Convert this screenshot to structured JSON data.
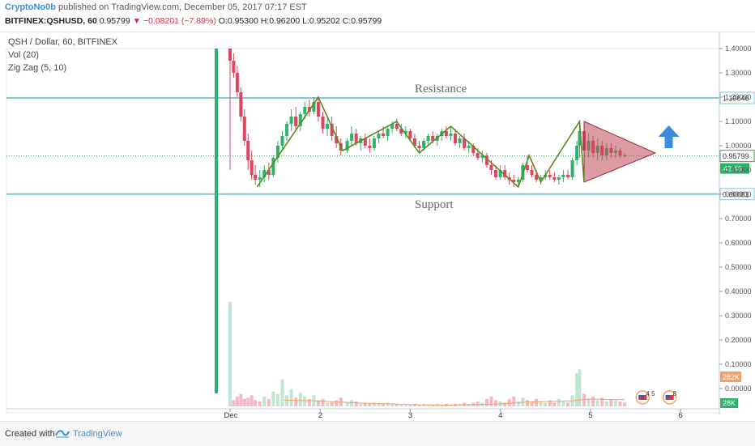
{
  "header": {
    "author": "CryptoNo0b",
    "published_text": "published on TradingView.com, December 05, 2017 07:17 EST",
    "symbol": "BITFINEX:QSHUSD, 60",
    "last": "0.95799",
    "change_arrow": "▼",
    "change": "−0.08201 (−7.89%)",
    "ohlc": "O:0.95300 H:0.96200 L:0.95202 C:0.95799"
  },
  "legend": {
    "title": "QSH / Dollar, 60, BITFINEX",
    "vol": "Vol (20)",
    "zigzag": "Zig Zag (5, 10)"
  },
  "footer": {
    "created_with": "Created with",
    "brand": "TradingView"
  },
  "colors": {
    "up": "#2db36b",
    "down": "#e0455f",
    "up_vol": "#bfe6cf",
    "down_vol": "#f5b8c4",
    "zigzag": "#5a8a1e",
    "levels": "#7ec8d6",
    "triangle_fill": "#c04a5a",
    "arrow": "#3a8dde",
    "vol_ma": "#f0a064"
  },
  "chart_data": {
    "type": "candlestick",
    "price_axis": {
      "labels": [
        "1.40000",
        "1.30000",
        "1.20000",
        "1.10000",
        "1.00000",
        "0.90000",
        "0.80000",
        "0.70000",
        "0.60000",
        "0.50000",
        "0.40000",
        "0.30000",
        "0.20000",
        "0.10000",
        "0.00000"
      ],
      "min": 0,
      "max": 1.4
    },
    "x_axis": {
      "labels": [
        "Dec",
        "2",
        "3",
        "4",
        "5",
        "6"
      ],
      "min": 1,
      "max": 6
    },
    "levels": [
      {
        "name": "Resistance",
        "value": 1.19646,
        "label": "1.19646"
      },
      {
        "name": "Support",
        "value": 0.80081,
        "label": "0.80081"
      }
    ],
    "current_price": {
      "value": 0.95799,
      "label": "0.95799",
      "countdown": "42:46"
    },
    "volume_labels": [
      "282K",
      "28K"
    ],
    "zigzag": [
      [
        1.3,
        0.83
      ],
      [
        1.98,
        1.2
      ],
      [
        2.25,
        0.98
      ],
      [
        2.85,
        1.1
      ],
      [
        3.1,
        0.97
      ],
      [
        3.45,
        1.08
      ],
      [
        4.2,
        0.83
      ],
      [
        4.32,
        0.96
      ],
      [
        4.45,
        0.85
      ],
      [
        4.88,
        1.1
      ],
      [
        4.93,
        0.85
      ]
    ],
    "triangle": [
      [
        4.93,
        1.1
      ],
      [
        5.72,
        0.97
      ],
      [
        4.93,
        0.85
      ]
    ],
    "candles": [
      {
        "t": 1.0,
        "o": 1.4,
        "h": 1.4,
        "l": 0.9,
        "c": 1.35
      },
      {
        "t": 1.04,
        "o": 1.35,
        "h": 1.38,
        "l": 1.28,
        "c": 1.3
      },
      {
        "t": 1.08,
        "o": 1.3,
        "h": 1.33,
        "l": 1.2,
        "c": 1.22
      },
      {
        "t": 1.12,
        "o": 1.22,
        "h": 1.24,
        "l": 1.1,
        "c": 1.12
      },
      {
        "t": 1.16,
        "o": 1.12,
        "h": 1.15,
        "l": 1.0,
        "c": 1.02
      },
      {
        "t": 1.2,
        "o": 1.02,
        "h": 1.05,
        "l": 0.9,
        "c": 0.94
      },
      {
        "t": 1.24,
        "o": 0.94,
        "h": 0.98,
        "l": 0.86,
        "c": 0.88
      },
      {
        "t": 1.28,
        "o": 0.88,
        "h": 0.92,
        "l": 0.84,
        "c": 0.86
      },
      {
        "t": 1.33,
        "o": 0.86,
        "h": 0.9,
        "l": 0.83,
        "c": 0.87
      },
      {
        "t": 1.38,
        "o": 0.87,
        "h": 0.92,
        "l": 0.85,
        "c": 0.9
      },
      {
        "t": 1.43,
        "o": 0.9,
        "h": 0.93,
        "l": 0.86,
        "c": 0.88
      },
      {
        "t": 1.48,
        "o": 0.88,
        "h": 0.96,
        "l": 0.87,
        "c": 0.95
      },
      {
        "t": 1.53,
        "o": 0.95,
        "h": 1.02,
        "l": 0.93,
        "c": 1.0
      },
      {
        "t": 1.58,
        "o": 1.0,
        "h": 1.06,
        "l": 0.98,
        "c": 1.04
      },
      {
        "t": 1.63,
        "o": 1.04,
        "h": 1.1,
        "l": 1.02,
        "c": 1.09
      },
      {
        "t": 1.68,
        "o": 1.09,
        "h": 1.15,
        "l": 1.06,
        "c": 1.12
      },
      {
        "t": 1.73,
        "o": 1.12,
        "h": 1.16,
        "l": 1.06,
        "c": 1.08
      },
      {
        "t": 1.78,
        "o": 1.08,
        "h": 1.14,
        "l": 1.06,
        "c": 1.13
      },
      {
        "t": 1.83,
        "o": 1.13,
        "h": 1.18,
        "l": 1.11,
        "c": 1.16
      },
      {
        "t": 1.88,
        "o": 1.16,
        "h": 1.19,
        "l": 1.12,
        "c": 1.14
      },
      {
        "t": 1.93,
        "o": 1.14,
        "h": 1.2,
        "l": 1.13,
        "c": 1.18
      },
      {
        "t": 1.98,
        "o": 1.18,
        "h": 1.2,
        "l": 1.1,
        "c": 1.12
      },
      {
        "t": 2.03,
        "o": 1.12,
        "h": 1.14,
        "l": 1.05,
        "c": 1.07
      },
      {
        "t": 2.08,
        "o": 1.07,
        "h": 1.11,
        "l": 1.04,
        "c": 1.09
      },
      {
        "t": 2.13,
        "o": 1.09,
        "h": 1.12,
        "l": 1.02,
        "c": 1.04
      },
      {
        "t": 2.18,
        "o": 1.04,
        "h": 1.08,
        "l": 0.99,
        "c": 1.01
      },
      {
        "t": 2.23,
        "o": 1.01,
        "h": 1.03,
        "l": 0.96,
        "c": 0.98
      },
      {
        "t": 2.3,
        "o": 0.98,
        "h": 1.03,
        "l": 0.97,
        "c": 1.02
      },
      {
        "t": 2.35,
        "o": 1.02,
        "h": 1.08,
        "l": 1.0,
        "c": 1.05
      },
      {
        "t": 2.4,
        "o": 1.05,
        "h": 1.07,
        "l": 1.0,
        "c": 1.01
      },
      {
        "t": 2.45,
        "o": 1.01,
        "h": 1.04,
        "l": 0.98,
        "c": 1.03
      },
      {
        "t": 2.5,
        "o": 1.03,
        "h": 1.05,
        "l": 0.99,
        "c": 1.0
      },
      {
        "t": 2.55,
        "o": 1.0,
        "h": 1.03,
        "l": 0.97,
        "c": 0.99
      },
      {
        "t": 2.6,
        "o": 0.99,
        "h": 1.04,
        "l": 0.98,
        "c": 1.03
      },
      {
        "t": 2.65,
        "o": 1.03,
        "h": 1.06,
        "l": 1.01,
        "c": 1.05
      },
      {
        "t": 2.7,
        "o": 1.05,
        "h": 1.08,
        "l": 1.03,
        "c": 1.04
      },
      {
        "t": 2.75,
        "o": 1.04,
        "h": 1.08,
        "l": 1.02,
        "c": 1.07
      },
      {
        "t": 2.8,
        "o": 1.07,
        "h": 1.1,
        "l": 1.05,
        "c": 1.09
      },
      {
        "t": 2.85,
        "o": 1.09,
        "h": 1.11,
        "l": 1.06,
        "c": 1.07
      },
      {
        "t": 2.9,
        "o": 1.07,
        "h": 1.09,
        "l": 1.04,
        "c": 1.05
      },
      {
        "t": 2.95,
        "o": 1.05,
        "h": 1.08,
        "l": 1.03,
        "c": 1.06
      },
      {
        "t": 3.0,
        "o": 1.06,
        "h": 1.07,
        "l": 1.02,
        "c": 1.03
      },
      {
        "t": 3.05,
        "o": 1.03,
        "h": 1.05,
        "l": 0.99,
        "c": 1.0
      },
      {
        "t": 3.1,
        "o": 1.0,
        "h": 1.02,
        "l": 0.97,
        "c": 0.99
      },
      {
        "t": 3.15,
        "o": 0.99,
        "h": 1.03,
        "l": 0.98,
        "c": 1.02
      },
      {
        "t": 3.2,
        "o": 1.02,
        "h": 1.05,
        "l": 1.0,
        "c": 1.04
      },
      {
        "t": 3.25,
        "o": 1.04,
        "h": 1.06,
        "l": 1.01,
        "c": 1.02
      },
      {
        "t": 3.3,
        "o": 1.02,
        "h": 1.05,
        "l": 1.0,
        "c": 1.04
      },
      {
        "t": 3.35,
        "o": 1.04,
        "h": 1.07,
        "l": 1.02,
        "c": 1.06
      },
      {
        "t": 3.4,
        "o": 1.06,
        "h": 1.08,
        "l": 1.03,
        "c": 1.04
      },
      {
        "t": 3.45,
        "o": 1.04,
        "h": 1.08,
        "l": 1.02,
        "c": 1.05
      },
      {
        "t": 3.5,
        "o": 1.05,
        "h": 1.07,
        "l": 1.0,
        "c": 1.01
      },
      {
        "t": 3.55,
        "o": 1.01,
        "h": 1.04,
        "l": 0.99,
        "c": 1.03
      },
      {
        "t": 3.6,
        "o": 1.03,
        "h": 1.05,
        "l": 0.98,
        "c": 0.99
      },
      {
        "t": 3.65,
        "o": 0.99,
        "h": 1.02,
        "l": 0.97,
        "c": 1.0
      },
      {
        "t": 3.7,
        "o": 1.0,
        "h": 1.01,
        "l": 0.96,
        "c": 0.97
      },
      {
        "t": 3.75,
        "o": 0.97,
        "h": 0.99,
        "l": 0.94,
        "c": 0.95
      },
      {
        "t": 3.8,
        "o": 0.95,
        "h": 0.98,
        "l": 0.93,
        "c": 0.96
      },
      {
        "t": 3.85,
        "o": 0.96,
        "h": 0.97,
        "l": 0.91,
        "c": 0.92
      },
      {
        "t": 3.9,
        "o": 0.92,
        "h": 0.94,
        "l": 0.88,
        "c": 0.9
      },
      {
        "t": 3.95,
        "o": 0.9,
        "h": 0.92,
        "l": 0.86,
        "c": 0.87
      },
      {
        "t": 4.0,
        "o": 0.87,
        "h": 0.92,
        "l": 0.86,
        "c": 0.9
      },
      {
        "t": 4.05,
        "o": 0.9,
        "h": 0.92,
        "l": 0.86,
        "c": 0.87
      },
      {
        "t": 4.1,
        "o": 0.87,
        "h": 0.89,
        "l": 0.84,
        "c": 0.86
      },
      {
        "t": 4.15,
        "o": 0.86,
        "h": 0.88,
        "l": 0.83,
        "c": 0.85
      },
      {
        "t": 4.2,
        "o": 0.85,
        "h": 0.87,
        "l": 0.83,
        "c": 0.86
      },
      {
        "t": 4.25,
        "o": 0.86,
        "h": 0.93,
        "l": 0.85,
        "c": 0.92
      },
      {
        "t": 4.3,
        "o": 0.92,
        "h": 0.96,
        "l": 0.89,
        "c": 0.9
      },
      {
        "t": 4.35,
        "o": 0.9,
        "h": 0.92,
        "l": 0.87,
        "c": 0.88
      },
      {
        "t": 4.4,
        "o": 0.88,
        "h": 0.9,
        "l": 0.85,
        "c": 0.86
      },
      {
        "t": 4.45,
        "o": 0.86,
        "h": 0.88,
        "l": 0.84,
        "c": 0.87
      },
      {
        "t": 4.5,
        "o": 0.87,
        "h": 0.9,
        "l": 0.86,
        "c": 0.88
      },
      {
        "t": 4.55,
        "o": 0.88,
        "h": 0.9,
        "l": 0.86,
        "c": 0.87
      },
      {
        "t": 4.6,
        "o": 0.87,
        "h": 0.89,
        "l": 0.85,
        "c": 0.86
      },
      {
        "t": 4.65,
        "o": 0.86,
        "h": 0.88,
        "l": 0.84,
        "c": 0.87
      },
      {
        "t": 4.7,
        "o": 0.87,
        "h": 0.9,
        "l": 0.85,
        "c": 0.88
      },
      {
        "t": 4.75,
        "o": 0.88,
        "h": 0.9,
        "l": 0.86,
        "c": 0.87
      },
      {
        "t": 4.8,
        "o": 0.87,
        "h": 0.95,
        "l": 0.86,
        "c": 0.94
      },
      {
        "t": 4.85,
        "o": 0.94,
        "h": 1.02,
        "l": 0.92,
        "c": 1.0
      },
      {
        "t": 4.88,
        "o": 1.0,
        "h": 1.1,
        "l": 0.95,
        "c": 1.06
      },
      {
        "t": 4.93,
        "o": 1.06,
        "h": 1.08,
        "l": 0.96,
        "c": 0.98
      },
      {
        "t": 4.98,
        "o": 0.98,
        "h": 1.05,
        "l": 0.95,
        "c": 1.02
      },
      {
        "t": 5.03,
        "o": 1.02,
        "h": 1.04,
        "l": 0.95,
        "c": 0.97
      },
      {
        "t": 5.08,
        "o": 0.97,
        "h": 1.03,
        "l": 0.94,
        "c": 1.0
      },
      {
        "t": 5.13,
        "o": 1.0,
        "h": 1.02,
        "l": 0.94,
        "c": 0.96
      },
      {
        "t": 5.18,
        "o": 0.96,
        "h": 1.01,
        "l": 0.94,
        "c": 0.99
      },
      {
        "t": 5.23,
        "o": 0.99,
        "h": 1.01,
        "l": 0.95,
        "c": 0.97
      },
      {
        "t": 5.28,
        "o": 0.97,
        "h": 1.0,
        "l": 0.95,
        "c": 0.98
      },
      {
        "t": 5.33,
        "o": 0.98,
        "h": 0.99,
        "l": 0.95,
        "c": 0.96
      },
      {
        "t": 5.38,
        "o": 0.96,
        "h": 0.97,
        "l": 0.95,
        "c": 0.958
      }
    ],
    "volume": [
      {
        "t": 1.0,
        "v": 0.85,
        "d": "up"
      },
      {
        "t": 1.04,
        "v": 0.05,
        "d": "down"
      },
      {
        "t": 1.08,
        "v": 0.08,
        "d": "down"
      },
      {
        "t": 1.12,
        "v": 0.1,
        "d": "down"
      },
      {
        "t": 1.16,
        "v": 0.06,
        "d": "down"
      },
      {
        "t": 1.2,
        "v": 0.07,
        "d": "down"
      },
      {
        "t": 1.24,
        "v": 0.09,
        "d": "down"
      },
      {
        "t": 1.28,
        "v": 0.05,
        "d": "down"
      },
      {
        "t": 1.33,
        "v": 0.04,
        "d": "down"
      },
      {
        "t": 1.38,
        "v": 0.08,
        "d": "up"
      },
      {
        "t": 1.43,
        "v": 0.06,
        "d": "down"
      },
      {
        "t": 1.48,
        "v": 0.12,
        "d": "up"
      },
      {
        "t": 1.53,
        "v": 0.1,
        "d": "up"
      },
      {
        "t": 1.58,
        "v": 0.22,
        "d": "up"
      },
      {
        "t": 1.63,
        "v": 0.09,
        "d": "up"
      },
      {
        "t": 1.68,
        "v": 0.14,
        "d": "up"
      },
      {
        "t": 1.73,
        "v": 0.07,
        "d": "down"
      },
      {
        "t": 1.78,
        "v": 0.11,
        "d": "up"
      },
      {
        "t": 1.83,
        "v": 0.08,
        "d": "up"
      },
      {
        "t": 1.88,
        "v": 0.06,
        "d": "down"
      },
      {
        "t": 1.93,
        "v": 0.09,
        "d": "up"
      },
      {
        "t": 1.98,
        "v": 0.05,
        "d": "down"
      },
      {
        "t": 2.03,
        "v": 0.06,
        "d": "down"
      },
      {
        "t": 2.08,
        "v": 0.03,
        "d": "up"
      },
      {
        "t": 2.13,
        "v": 0.04,
        "d": "down"
      },
      {
        "t": 2.18,
        "v": 0.05,
        "d": "down"
      },
      {
        "t": 2.23,
        "v": 0.07,
        "d": "down"
      },
      {
        "t": 2.3,
        "v": 0.03,
        "d": "up"
      },
      {
        "t": 2.35,
        "v": 0.05,
        "d": "up"
      },
      {
        "t": 2.4,
        "v": 0.04,
        "d": "down"
      },
      {
        "t": 2.45,
        "v": 0.02,
        "d": "up"
      },
      {
        "t": 2.5,
        "v": 0.03,
        "d": "down"
      },
      {
        "t": 2.55,
        "v": 0.02,
        "d": "down"
      },
      {
        "t": 2.6,
        "v": 0.03,
        "d": "up"
      },
      {
        "t": 2.65,
        "v": 0.02,
        "d": "up"
      },
      {
        "t": 2.7,
        "v": 0.02,
        "d": "down"
      },
      {
        "t": 2.75,
        "v": 0.03,
        "d": "up"
      },
      {
        "t": 2.8,
        "v": 0.02,
        "d": "up"
      },
      {
        "t": 2.85,
        "v": 0.02,
        "d": "down"
      },
      {
        "t": 2.9,
        "v": 0.01,
        "d": "down"
      },
      {
        "t": 2.95,
        "v": 0.01,
        "d": "up"
      },
      {
        "t": 3.0,
        "v": 0.01,
        "d": "down"
      },
      {
        "t": 3.05,
        "v": 0.02,
        "d": "down"
      },
      {
        "t": 3.1,
        "v": 0.01,
        "d": "down"
      },
      {
        "t": 3.15,
        "v": 0.02,
        "d": "up"
      },
      {
        "t": 3.2,
        "v": 0.01,
        "d": "up"
      },
      {
        "t": 3.25,
        "v": 0.01,
        "d": "down"
      },
      {
        "t": 3.3,
        "v": 0.02,
        "d": "up"
      },
      {
        "t": 3.35,
        "v": 0.01,
        "d": "up"
      },
      {
        "t": 3.4,
        "v": 0.02,
        "d": "down"
      },
      {
        "t": 3.45,
        "v": 0.01,
        "d": "up"
      },
      {
        "t": 3.5,
        "v": 0.02,
        "d": "down"
      },
      {
        "t": 3.55,
        "v": 0.02,
        "d": "up"
      },
      {
        "t": 3.6,
        "v": 0.03,
        "d": "down"
      },
      {
        "t": 3.65,
        "v": 0.02,
        "d": "up"
      },
      {
        "t": 3.7,
        "v": 0.03,
        "d": "down"
      },
      {
        "t": 3.75,
        "v": 0.04,
        "d": "down"
      },
      {
        "t": 3.8,
        "v": 0.03,
        "d": "up"
      },
      {
        "t": 3.85,
        "v": 0.06,
        "d": "down"
      },
      {
        "t": 3.9,
        "v": 0.08,
        "d": "down"
      },
      {
        "t": 3.95,
        "v": 0.05,
        "d": "down"
      },
      {
        "t": 4.0,
        "v": 0.04,
        "d": "up"
      },
      {
        "t": 4.05,
        "v": 0.03,
        "d": "down"
      },
      {
        "t": 4.1,
        "v": 0.06,
        "d": "down"
      },
      {
        "t": 4.15,
        "v": 0.08,
        "d": "down"
      },
      {
        "t": 4.2,
        "v": 0.04,
        "d": "up"
      },
      {
        "t": 4.25,
        "v": 0.07,
        "d": "up"
      },
      {
        "t": 4.3,
        "v": 0.05,
        "d": "down"
      },
      {
        "t": 4.35,
        "v": 0.03,
        "d": "down"
      },
      {
        "t": 4.4,
        "v": 0.06,
        "d": "down"
      },
      {
        "t": 4.45,
        "v": 0.04,
        "d": "up"
      },
      {
        "t": 4.5,
        "v": 0.03,
        "d": "up"
      },
      {
        "t": 4.55,
        "v": 0.05,
        "d": "down"
      },
      {
        "t": 4.6,
        "v": 0.03,
        "d": "down"
      },
      {
        "t": 4.65,
        "v": 0.06,
        "d": "up"
      },
      {
        "t": 4.7,
        "v": 0.04,
        "d": "up"
      },
      {
        "t": 4.75,
        "v": 0.03,
        "d": "down"
      },
      {
        "t": 4.8,
        "v": 0.09,
        "d": "up"
      },
      {
        "t": 4.85,
        "v": 0.27,
        "d": "up"
      },
      {
        "t": 4.88,
        "v": 0.3,
        "d": "up"
      },
      {
        "t": 4.93,
        "v": 0.1,
        "d": "down"
      },
      {
        "t": 4.98,
        "v": 0.06,
        "d": "up"
      },
      {
        "t": 5.03,
        "v": 0.08,
        "d": "down"
      },
      {
        "t": 5.08,
        "v": 0.05,
        "d": "up"
      },
      {
        "t": 5.13,
        "v": 0.07,
        "d": "down"
      },
      {
        "t": 5.18,
        "v": 0.04,
        "d": "up"
      },
      {
        "t": 5.23,
        "v": 0.06,
        "d": "down"
      },
      {
        "t": 5.28,
        "v": 0.05,
        "d": "up"
      },
      {
        "t": 5.33,
        "v": 0.04,
        "d": "down"
      },
      {
        "t": 5.38,
        "v": 0.03,
        "d": "down"
      }
    ],
    "volume_ma": [
      [
        1.6,
        0.05
      ],
      [
        1.9,
        0.045
      ],
      [
        2.2,
        0.035
      ],
      [
        2.5,
        0.025
      ],
      [
        2.8,
        0.02
      ],
      [
        3.1,
        0.012
      ],
      [
        3.4,
        0.01
      ],
      [
        3.7,
        0.015
      ],
      [
        4.0,
        0.02
      ],
      [
        4.3,
        0.035
      ],
      [
        4.6,
        0.04
      ],
      [
        4.8,
        0.045
      ],
      [
        5.0,
        0.06
      ],
      [
        5.2,
        0.055
      ],
      [
        5.38,
        0.055
      ]
    ],
    "event_badges": [
      {
        "label": "4 5"
      },
      {
        "label": "8"
      }
    ]
  }
}
